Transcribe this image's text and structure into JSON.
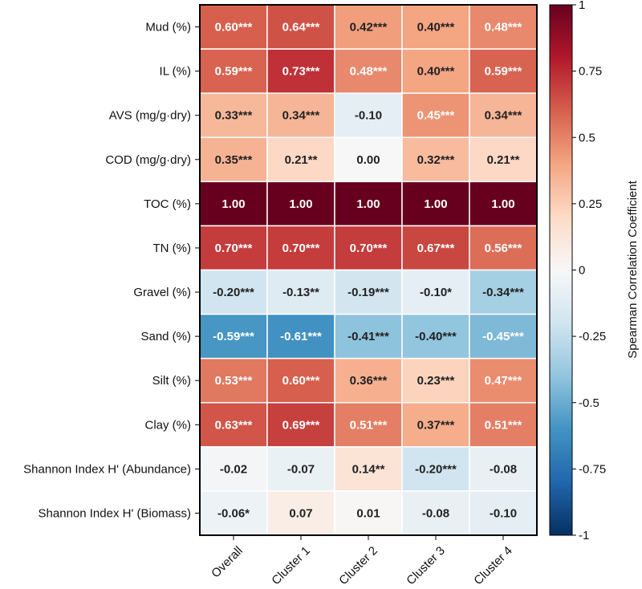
{
  "chart_data": {
    "type": "heatmap",
    "title": "",
    "rows": [
      "Mud (%)",
      "IL (%)",
      "AVS (mg/g·dry)",
      "COD (mg/g·dry)",
      "TOC (%)",
      "TN (%)",
      "Gravel (%)",
      "Sand (%)",
      "Silt (%)",
      "Clay (%)",
      "Shannon Index H' (Abundance)",
      "Shannon Index H' (Biomass)"
    ],
    "columns": [
      "Overall",
      "Cluster 1",
      "Cluster 2",
      "Cluster 3",
      "Cluster 4"
    ],
    "values": [
      [
        0.6,
        0.64,
        0.42,
        0.4,
        0.48
      ],
      [
        0.59,
        0.73,
        0.48,
        0.4,
        0.59
      ],
      [
        0.33,
        0.34,
        -0.1,
        0.45,
        0.34
      ],
      [
        0.35,
        0.21,
        0.0,
        0.32,
        0.21
      ],
      [
        1.0,
        1.0,
        1.0,
        1.0,
        1.0
      ],
      [
        0.7,
        0.7,
        0.7,
        0.67,
        0.56
      ],
      [
        -0.2,
        -0.13,
        -0.19,
        -0.1,
        -0.34
      ],
      [
        -0.59,
        -0.61,
        -0.41,
        -0.4,
        -0.45
      ],
      [
        0.53,
        0.6,
        0.36,
        0.23,
        0.47
      ],
      [
        0.63,
        0.69,
        0.51,
        0.37,
        0.51
      ],
      [
        -0.02,
        -0.07,
        0.14,
        -0.2,
        -0.08
      ],
      [
        -0.06,
        0.07,
        0.01,
        -0.08,
        -0.1
      ]
    ],
    "labels": [
      [
        "0.60***",
        "0.64***",
        "0.42***",
        "0.40***",
        "0.48***"
      ],
      [
        "0.59***",
        "0.73***",
        "0.48***",
        "0.40***",
        "0.59***"
      ],
      [
        "0.33***",
        "0.34***",
        "-0.10",
        "0.45***",
        "0.34***"
      ],
      [
        "0.35***",
        "0.21**",
        "0.00",
        "0.32***",
        "0.21**"
      ],
      [
        "1.00",
        "1.00",
        "1.00",
        "1.00",
        "1.00"
      ],
      [
        "0.70***",
        "0.70***",
        "0.70***",
        "0.67***",
        "0.56***"
      ],
      [
        "-0.20***",
        "-0.13**",
        "-0.19***",
        "-0.10*",
        "-0.34***"
      ],
      [
        "-0.59***",
        "-0.61***",
        "-0.41***",
        "-0.40***",
        "-0.45***"
      ],
      [
        "0.53***",
        "0.60***",
        "0.36***",
        "0.23***",
        "0.47***"
      ],
      [
        "0.63***",
        "0.69***",
        "0.51***",
        "0.37***",
        "0.51***"
      ],
      [
        "-0.02",
        "-0.07",
        "0.14**",
        "-0.20***",
        "-0.08"
      ],
      [
        "-0.06*",
        "0.07",
        "0.01",
        "-0.08",
        "-0.10"
      ]
    ],
    "colorbar": {
      "label": "Spearman Correlation Coefficient",
      "range": [
        -1,
        1
      ],
      "ticks": [
        1,
        0.75,
        0.5,
        0.25,
        0,
        -0.25,
        -0.5,
        -0.75,
        -1
      ],
      "tick_labels": [
        "1",
        "0.75",
        "0.5",
        "0.25",
        "0",
        "-0.25",
        "-0.5",
        "-0.75",
        "-1"
      ],
      "colormap": "RdBu_r"
    }
  }
}
